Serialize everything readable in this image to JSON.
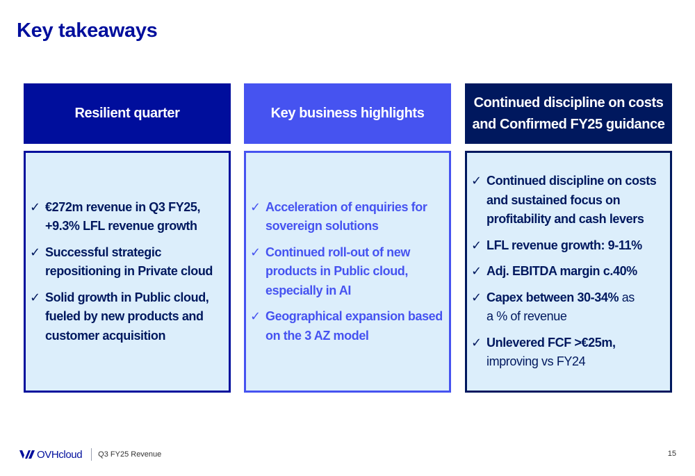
{
  "title": "Key takeaways",
  "columns": [
    {
      "heading_lines": [
        "Resilient quarter"
      ],
      "items": [
        {
          "check": "✓",
          "lines": [
            {
              "bold": "€272m revenue in Q3 FY25,"
            },
            {
              "bold": "+9.3% LFL revenue growth"
            }
          ]
        },
        {
          "check": "✓",
          "lines": [
            {
              "bold": "Successful strategic"
            },
            {
              "bold": "repositioning in Private cloud"
            }
          ]
        },
        {
          "check": "✓",
          "lines": [
            {
              "bold": "Solid growth in Public cloud,"
            },
            {
              "bold": "fueled by new products and"
            },
            {
              "bold": "customer acquisition"
            }
          ]
        }
      ]
    },
    {
      "heading_lines": [
        "Key business highlights"
      ],
      "items": [
        {
          "check": "✓",
          "lines": [
            {
              "bold": "Acceleration of enquiries for"
            },
            {
              "bold": "sovereign solutions"
            }
          ]
        },
        {
          "check": "✓",
          "lines": [
            {
              "bold": "Continued roll-out of new"
            },
            {
              "bold": "products in Public cloud,"
            },
            {
              "bold": "especially in AI"
            }
          ]
        },
        {
          "check": "✓",
          "lines": [
            {
              "bold": "Geographical expansion based"
            },
            {
              "bold": "on the 3 AZ model"
            }
          ]
        }
      ]
    },
    {
      "heading_lines": [
        "Continued discipline on costs",
        "and Confirmed FY25 guidance"
      ],
      "items": [
        {
          "check": "✓",
          "lines": [
            {
              "bold": "Continued discipline on costs"
            },
            {
              "bold": "and sustained focus on"
            },
            {
              "bold": "profitability and cash levers"
            }
          ]
        },
        {
          "check": "✓",
          "lines": [
            {
              "bold": "LFL revenue growth: 9-11%"
            }
          ]
        },
        {
          "check": "✓",
          "lines": [
            {
              "bold": "Adj. EBITDA margin c.40%"
            }
          ]
        },
        {
          "check": "✓",
          "lines": [
            {
              "bold": "Capex between 30-34%",
              "normal": " as"
            },
            {
              "normal": "a % of revenue"
            }
          ]
        },
        {
          "check": "✓",
          "lines": [
            {
              "bold": "Unlevered FCF >€25m,"
            },
            {
              "normal": "improving vs FY24"
            }
          ]
        }
      ]
    }
  ],
  "footer": {
    "logo_text": "OVHcloud",
    "logo_icon": "ovhcloud-logo-icon",
    "caption": "Q3 FY25 Revenue",
    "page_number": "15"
  },
  "colors": {
    "title": "#000e9c",
    "col1": "#000e9c",
    "col2": "#4653f0",
    "col3": "#00185e",
    "box_fill": "#dceefb"
  }
}
